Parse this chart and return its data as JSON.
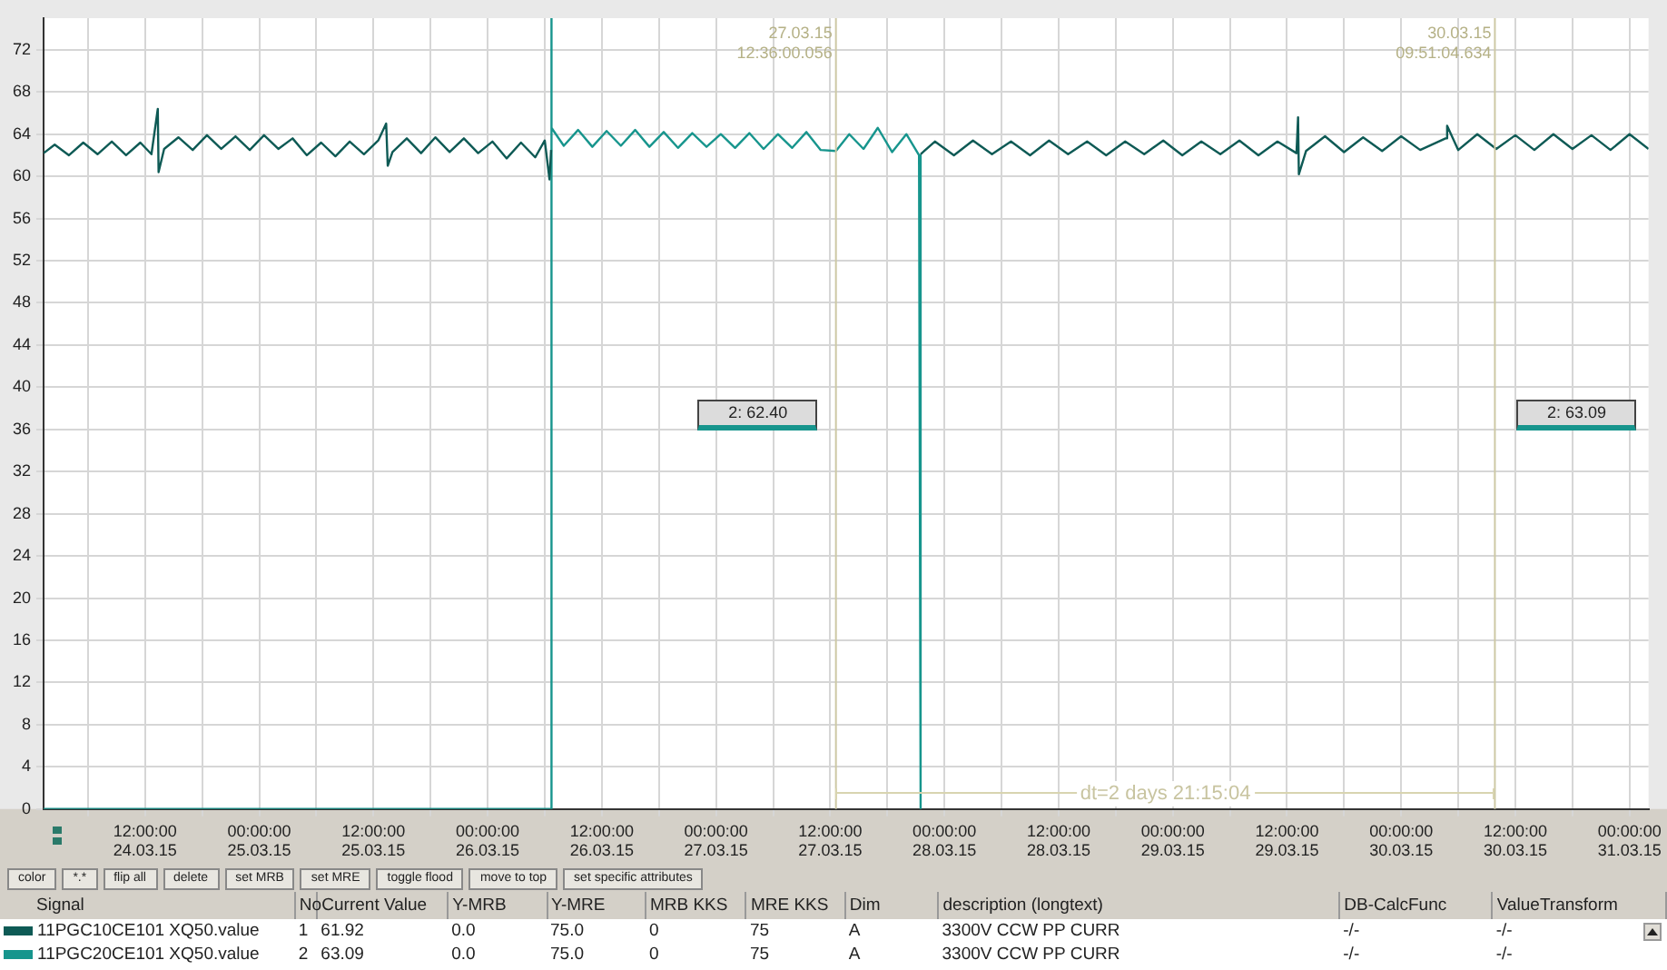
{
  "chart_data": [
    {
      "type": "line",
      "legend": "bottom left",
      "grid": true,
      "marker": "none",
      "line_style": "solid",
      "xlim": [
        "--03-24T01:20",
        "--03-31T02:00"
      ],
      "xticks": [
        {
          "value": "--03-24T06:00",
          "label": null
        },
        {
          "value": "--03-24T12:00",
          "label": "12:00:00\n24.03.15"
        },
        {
          "value": "--03-24T18:00",
          "label": null
        },
        {
          "value": "--03-25T00:00",
          "label": "00:00:00\n25.03.15"
        },
        {
          "value": "--03-25T06:00",
          "label": null
        },
        {
          "value": "--03-25T12:00",
          "label": "12:00:00\n25.03.15"
        },
        {
          "value": "--03-25T18:00",
          "label": null
        },
        {
          "value": "--03-26T00:00",
          "label": "00:00:00\n26.03.15"
        },
        {
          "value": "--03-26T06:00",
          "label": null
        },
        {
          "value": "--03-26T12:00",
          "label": "12:00:00\n26.03.15"
        },
        {
          "value": "--03-26T18:00",
          "label": null
        },
        {
          "value": "--03-27T00:00",
          "label": "00:00:00\n27.03.15"
        },
        {
          "value": "--03-27T06:00",
          "label": null
        },
        {
          "value": "--03-27T12:00",
          "label": "12:00:00\n27.03.15"
        },
        {
          "value": "--03-27T18:00",
          "label": null
        },
        {
          "value": "--03-28T00:00",
          "label": "00:00:00\n28.03.15"
        },
        {
          "value": "--03-28T06:00",
          "label": null
        },
        {
          "value": "--03-28T12:00",
          "label": "12:00:00\n28.03.15"
        },
        {
          "value": "--03-28T18:00",
          "label": null
        },
        {
          "value": "--03-29T00:00",
          "label": "00:00:00\n29.03.15"
        },
        {
          "value": "--03-29T06:00",
          "label": null
        },
        {
          "value": "--03-29T12:00",
          "label": "12:00:00\n29.03.15"
        },
        {
          "value": "--03-29T18:00",
          "label": null
        },
        {
          "value": "--03-30T00:00",
          "label": "00:00:00\n30.03.15"
        },
        {
          "value": "--03-30T06:00",
          "label": null
        },
        {
          "value": "--03-30T12:00",
          "label": "12:00:00\n30.03.15"
        },
        {
          "value": "--03-30T18:00",
          "label": null
        },
        {
          "value": "--03-31T00:00",
          "label": "00:00:00\n31.03.15"
        }
      ],
      "ylim": [
        0,
        75
      ],
      "yticks": [
        0,
        4,
        8,
        12,
        16,
        20,
        24,
        28,
        32,
        36,
        40,
        44,
        48,
        52,
        56,
        60,
        64,
        68,
        72
      ],
      "series": [
        {
          "name": "11PGC10CE101 XQ50.value",
          "color": "#0e5a55",
          "x": [
            "--03-24T01:20",
            "--03-24T02:30",
            "--03-24T04:00",
            "--03-24T05:30",
            "--03-24T07:00",
            "--03-24T08:30",
            "--03-24T10:00",
            "--03-24T11:30",
            "--03-24T12:40",
            "--03-24T13:20",
            "--03-24T13:25",
            "--03-24T14:00",
            "--03-24T15:30",
            "--03-24T17:00",
            "--03-24T18:30",
            "--03-24T20:00",
            "--03-24T21:30",
            "--03-24T23:00",
            "--03-25T00:30",
            "--03-25T02:00",
            "--03-25T03:30",
            "--03-25T05:00",
            "--03-25T06:30",
            "--03-25T08:00",
            "--03-25T09:30",
            "--03-25T11:00",
            "--03-25T12:30",
            "--03-25T13:20",
            "--03-25T13:30",
            "--03-25T14:00",
            "--03-25T15:30",
            "--03-25T17:00",
            "--03-25T18:30",
            "--03-25T20:00",
            "--03-25T21:30",
            "--03-25T23:00",
            "--03-26T00:30",
            "--03-26T02:00",
            "--03-26T03:30",
            "--03-26T05:00",
            "--03-26T06:00",
            "--03-26T06:30",
            "--03-26T06:40",
            "--03-27T00:00",
            "--03-27T21:30",
            "--03-27T23:00",
            "--03-28T01:00",
            "--03-28T03:00",
            "--03-28T05:00",
            "--03-28T07:00",
            "--03-28T09:00",
            "--03-28T11:00",
            "--03-28T13:00",
            "--03-28T15:00",
            "--03-28T17:00",
            "--03-28T19:00",
            "--03-28T21:00",
            "--03-28T23:00",
            "--03-29T01:00",
            "--03-29T03:00",
            "--03-29T05:00",
            "--03-29T07:00",
            "--03-29T09:00",
            "--03-29T11:00",
            "--03-29T13:00",
            "--03-29T13:10",
            "--03-29T13:15",
            "--03-29T14:00",
            "--03-29T16:00",
            "--03-29T18:00",
            "--03-29T20:00",
            "--03-29T22:00",
            "--03-30T00:00",
            "--03-30T02:00",
            "--03-30T04:40",
            "--03-30T04:50",
            "--03-30T06:00",
            "--03-30T08:00",
            "--03-30T10:00",
            "--03-30T12:00",
            "--03-30T14:00",
            "--03-30T16:00",
            "--03-30T18:00",
            "--03-30T20:00",
            "--03-30T22:00",
            "--03-31T00:00",
            "--03-31T02:00"
          ],
          "values": [
            62.2,
            63.0,
            62.0,
            63.2,
            62.1,
            63.3,
            62.0,
            63.2,
            62.1,
            66.4,
            60.4,
            62.6,
            63.7,
            62.5,
            63.9,
            62.6,
            63.8,
            62.5,
            63.9,
            62.6,
            63.6,
            62.0,
            63.2,
            61.9,
            63.3,
            62.1,
            63.4,
            65.0,
            61.0,
            62.3,
            63.6,
            62.2,
            63.7,
            62.3,
            63.6,
            62.2,
            63.3,
            61.7,
            63.2,
            61.8,
            63.4,
            59.7,
            62.5,
            null,
            62.1,
            63.3,
            62.0,
            63.4,
            62.1,
            63.3,
            62.0,
            63.4,
            62.1,
            63.3,
            62.0,
            63.3,
            62.1,
            63.4,
            62.0,
            63.3,
            62.1,
            63.4,
            62.0,
            63.3,
            62.2,
            65.6,
            60.2,
            62.4,
            63.8,
            62.3,
            63.7,
            62.4,
            63.8,
            62.5,
            63.6,
            64.8,
            62.5,
            64.0,
            62.6,
            63.9,
            62.5,
            64.0,
            62.6,
            63.9,
            62.5,
            64.0,
            62.6
          ]
        },
        {
          "name": "11PGC20CE101 XQ50.value",
          "color": "#17958d",
          "x": [
            "--03-24T01:20",
            "--03-26T06:40",
            "--03-26T06:40",
            "--03-26T06:45",
            "--03-26T08:00",
            "--03-26T09:30",
            "--03-26T11:00",
            "--03-26T12:30",
            "--03-26T14:00",
            "--03-26T15:30",
            "--03-26T17:00",
            "--03-26T18:30",
            "--03-26T20:00",
            "--03-26T21:30",
            "--03-26T23:00",
            "--03-27T00:30",
            "--03-27T02:00",
            "--03-27T03:30",
            "--03-27T05:00",
            "--03-27T06:30",
            "--03-27T08:00",
            "--03-27T09:30",
            "--03-27T11:00",
            "--03-27T12:36",
            "--03-27T14:00",
            "--03-27T15:30",
            "--03-27T17:00",
            "--03-27T18:30",
            "--03-27T20:00",
            "--03-27T21:20",
            "--03-27T21:30"
          ],
          "values": [
            0,
            0,
            75,
            64.6,
            62.9,
            64.4,
            62.8,
            64.3,
            62.9,
            64.4,
            62.8,
            64.2,
            62.7,
            64.1,
            62.8,
            64.0,
            62.7,
            64.1,
            62.6,
            64.0,
            62.7,
            64.2,
            62.5,
            62.4,
            64.0,
            62.6,
            64.6,
            62.3,
            64.0,
            62.0,
            0
          ]
        }
      ],
      "ref_lines": [
        {
          "axis": "x",
          "value": "--03-27T12:36",
          "label": "27.03.15\n12:36:00.056",
          "color": "#cdc9a5"
        },
        {
          "axis": "x",
          "value": "--03-30T09:51",
          "label": "30.03.15\n09:51:04.634",
          "color": "#cdc9a5"
        }
      ],
      "annotations": [
        "2: 62.40",
        "2: 63.09",
        "dt=2 days 21:15:04"
      ]
    },
    {
      "type": "other",
      "annotations": [
        "color",
        "*.*",
        "flip all",
        "delete",
        "set MRB",
        "set MRE",
        "toggle flood",
        "move to top",
        "set specific attributes"
      ],
      "categories": [
        "Signal",
        "No",
        "Current Value",
        "Y-MRB",
        "Y-MRE",
        "MRB KKS",
        "MRE KKS",
        "Dim",
        "description (longtext)",
        "DB-CalcFunc",
        "ValueTransform"
      ],
      "cell_labels": [
        [
          "1",
          "61.92",
          "0.0",
          "75.0",
          "0",
          "75",
          "A",
          "3300V CCW PP CURR",
          "-/-",
          "-/-"
        ],
        [
          "2",
          "63.09",
          "0.0",
          "75.0",
          "0",
          "75",
          "A",
          "3300V CCW PP CURR",
          "-/-",
          "-/-"
        ]
      ]
    }
  ]
}
